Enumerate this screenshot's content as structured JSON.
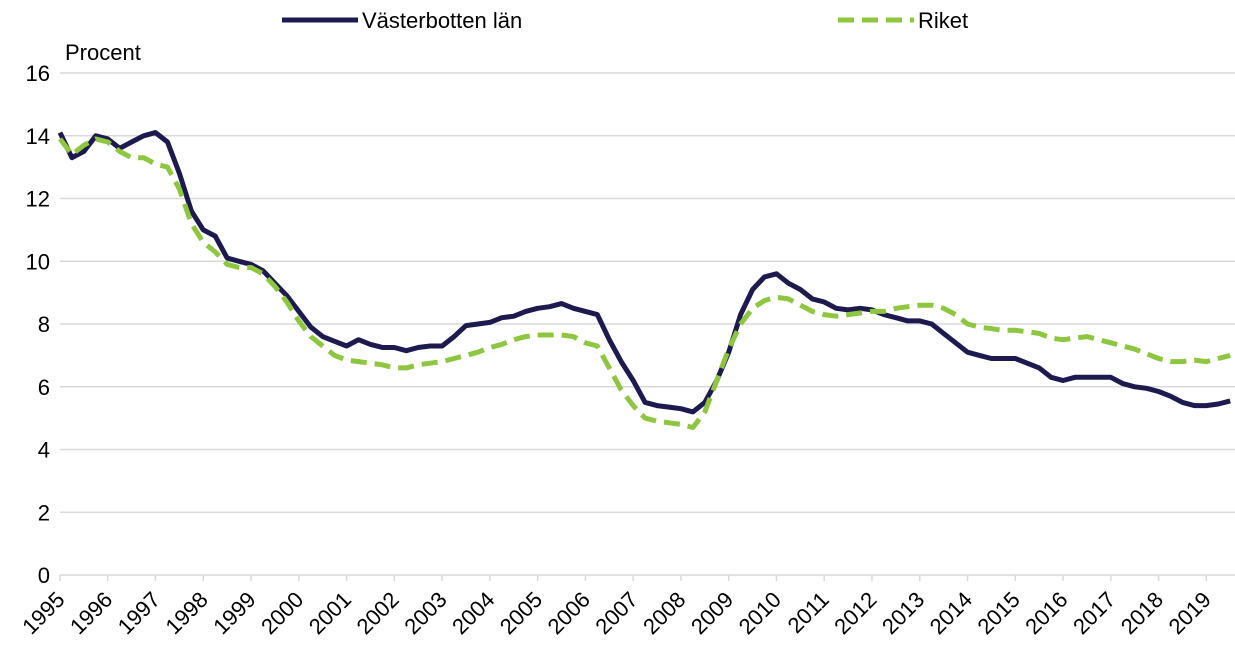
{
  "chart_data": {
    "type": "line",
    "y_axis_label": "Procent",
    "x": [
      1995,
      1995.25,
      1995.5,
      1995.75,
      1996,
      1996.25,
      1996.5,
      1996.75,
      1997,
      1997.25,
      1997.5,
      1997.75,
      1998,
      1998.25,
      1998.5,
      1998.75,
      1999,
      1999.25,
      1999.5,
      1999.75,
      2000,
      2000.25,
      2000.5,
      2000.75,
      2001,
      2001.25,
      2001.5,
      2001.75,
      2002,
      2002.25,
      2002.5,
      2002.75,
      2003,
      2003.25,
      2003.5,
      2003.75,
      2004,
      2004.25,
      2004.5,
      2004.75,
      2005,
      2005.25,
      2005.5,
      2005.75,
      2006,
      2006.25,
      2006.5,
      2006.75,
      2007,
      2007.25,
      2007.5,
      2007.75,
      2008,
      2008.25,
      2008.5,
      2008.75,
      2009,
      2009.25,
      2009.5,
      2009.75,
      2010,
      2010.25,
      2010.5,
      2010.75,
      2011,
      2011.25,
      2011.5,
      2011.75,
      2012,
      2012.25,
      2012.5,
      2012.75,
      2013,
      2013.25,
      2013.5,
      2013.75,
      2014,
      2014.25,
      2014.5,
      2014.75,
      2015,
      2015.25,
      2015.5,
      2015.75,
      2016,
      2016.25,
      2016.5,
      2016.75,
      2017,
      2017.25,
      2017.5,
      2017.75,
      2018,
      2018.25,
      2018.5,
      2018.75,
      2019,
      2019.25,
      2019.5
    ],
    "series": [
      {
        "name": "Västerbotten län",
        "color": "#1c1a4e",
        "dash": "solid",
        "values": [
          14.1,
          13.3,
          13.5,
          14.0,
          13.9,
          13.6,
          13.8,
          14.0,
          14.1,
          13.8,
          12.8,
          11.6,
          11.0,
          10.8,
          10.1,
          10.0,
          9.9,
          9.7,
          9.3,
          8.9,
          8.4,
          7.9,
          7.6,
          7.45,
          7.3,
          7.5,
          7.35,
          7.25,
          7.25,
          7.15,
          7.25,
          7.3,
          7.3,
          7.6,
          7.95,
          8.0,
          8.05,
          8.2,
          8.25,
          8.4,
          8.5,
          8.55,
          8.65,
          8.5,
          8.4,
          8.3,
          7.5,
          6.8,
          6.2,
          5.5,
          5.4,
          5.35,
          5.3,
          5.2,
          5.5,
          6.2,
          7.1,
          8.3,
          9.1,
          9.5,
          9.6,
          9.3,
          9.1,
          8.8,
          8.7,
          8.5,
          8.45,
          8.5,
          8.45,
          8.3,
          8.2,
          8.1,
          8.1,
          8.0,
          7.7,
          7.4,
          7.1,
          7.0,
          6.9,
          6.9,
          6.9,
          6.75,
          6.6,
          6.3,
          6.2,
          6.3,
          6.3,
          6.3,
          6.3,
          6.1,
          6.0,
          5.95,
          5.85,
          5.7,
          5.5,
          5.4,
          5.4,
          5.45,
          5.55
        ]
      },
      {
        "name": "Riket",
        "color": "#8dc63f",
        "dash": "dashed",
        "values": [
          13.9,
          13.4,
          13.7,
          13.9,
          13.8,
          13.5,
          13.3,
          13.3,
          13.1,
          13.0,
          12.3,
          11.2,
          10.6,
          10.3,
          9.9,
          9.8,
          9.8,
          9.6,
          9.2,
          8.7,
          8.1,
          7.6,
          7.3,
          7.0,
          6.85,
          6.8,
          6.75,
          6.7,
          6.6,
          6.6,
          6.7,
          6.75,
          6.8,
          6.9,
          7.0,
          7.1,
          7.25,
          7.35,
          7.5,
          7.6,
          7.65,
          7.65,
          7.65,
          7.6,
          7.4,
          7.3,
          6.6,
          5.9,
          5.4,
          5.0,
          4.9,
          4.85,
          4.8,
          4.7,
          5.2,
          6.2,
          7.2,
          8.0,
          8.5,
          8.75,
          8.85,
          8.8,
          8.6,
          8.4,
          8.3,
          8.25,
          8.3,
          8.35,
          8.4,
          8.4,
          8.5,
          8.55,
          8.6,
          8.6,
          8.5,
          8.3,
          8.0,
          7.9,
          7.85,
          7.8,
          7.8,
          7.75,
          7.7,
          7.55,
          7.5,
          7.55,
          7.6,
          7.5,
          7.4,
          7.3,
          7.2,
          7.05,
          6.9,
          6.8,
          6.8,
          6.85,
          6.8,
          6.9,
          7.0
        ]
      }
    ],
    "xlim": [
      1995,
      2019.6
    ],
    "xticks": [
      1995,
      1996,
      1997,
      1998,
      1999,
      2000,
      2001,
      2002,
      2003,
      2004,
      2005,
      2006,
      2007,
      2008,
      2009,
      2010,
      2011,
      2012,
      2013,
      2014,
      2015,
      2016,
      2017,
      2018,
      2019
    ],
    "ylim": [
      0,
      16
    ],
    "yticks": [
      0,
      2,
      4,
      6,
      8,
      10,
      12,
      14,
      16
    ],
    "grid": true,
    "legend": "top"
  }
}
